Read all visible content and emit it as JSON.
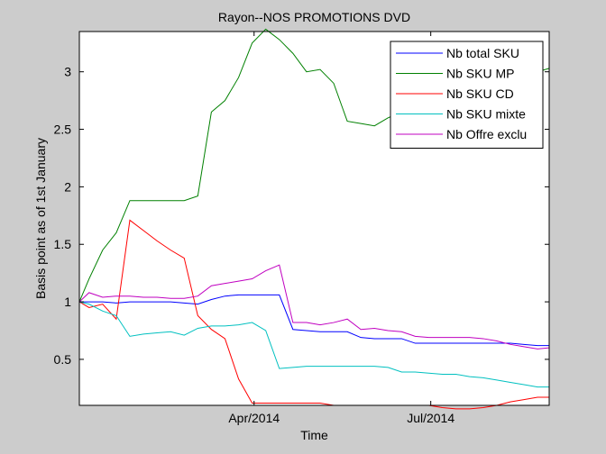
{
  "chart_data": {
    "type": "line",
    "title": "Rayon--NOS PROMOTIONS DVD",
    "xlabel": "Time",
    "ylabel": "Basis point as of 1st January",
    "xlim": [
      "2014-01-01",
      "2014-08-31"
    ],
    "ylim": [
      0.1,
      3.35
    ],
    "xticks": [
      "2014-04-01",
      "2014-07-01"
    ],
    "xtick_labels": [
      "Apr/2014",
      "Jul/2014"
    ],
    "yticks": [
      0.5,
      1,
      1.5,
      2,
      2.5,
      3
    ],
    "ytick_labels": [
      "0.5",
      "1",
      "1.5",
      "2",
      "2.5",
      "3"
    ],
    "grid": false,
    "legend_position": "top-right",
    "x": [
      "2014-01-01",
      "2014-01-06",
      "2014-01-13",
      "2014-01-20",
      "2014-01-27",
      "2014-02-03",
      "2014-02-10",
      "2014-02-17",
      "2014-02-24",
      "2014-03-03",
      "2014-03-10",
      "2014-03-17",
      "2014-03-24",
      "2014-03-31",
      "2014-04-07",
      "2014-04-14",
      "2014-04-21",
      "2014-04-28",
      "2014-05-05",
      "2014-05-12",
      "2014-05-19",
      "2014-05-26",
      "2014-06-02",
      "2014-06-09",
      "2014-06-16",
      "2014-06-23",
      "2014-06-30",
      "2014-07-07",
      "2014-07-14",
      "2014-07-21",
      "2014-07-28",
      "2014-08-04",
      "2014-08-11",
      "2014-08-18",
      "2014-08-25",
      "2014-08-31"
    ],
    "series": [
      {
        "name": "Nb total SKU",
        "color": "#0000ff",
        "values": [
          1.0,
          1.0,
          1.0,
          0.99,
          1.0,
          1.0,
          1.0,
          1.0,
          0.99,
          0.98,
          1.02,
          1.05,
          1.06,
          1.06,
          1.06,
          1.06,
          0.76,
          0.75,
          0.74,
          0.74,
          0.74,
          0.69,
          0.68,
          0.68,
          0.68,
          0.64,
          0.64,
          0.64,
          0.64,
          0.64,
          0.64,
          0.64,
          0.64,
          0.63,
          0.62,
          0.62
        ]
      },
      {
        "name": "Nb SKU MP",
        "color": "#008000",
        "values": [
          1.0,
          1.2,
          1.45,
          1.6,
          1.88,
          1.88,
          1.88,
          1.88,
          1.88,
          1.92,
          2.65,
          2.75,
          2.95,
          3.25,
          3.37,
          3.28,
          3.16,
          3.0,
          3.02,
          2.9,
          2.57,
          2.55,
          2.53,
          2.6,
          2.65,
          2.7,
          2.75,
          2.8,
          2.85,
          2.9,
          2.92,
          2.95,
          2.97,
          3.0,
          3.0,
          3.03
        ]
      },
      {
        "name": "Nb SKU CD",
        "color": "#ff0000",
        "values": [
          1.0,
          0.95,
          0.98,
          0.85,
          1.71,
          1.62,
          1.53,
          1.45,
          1.38,
          0.88,
          0.76,
          0.68,
          0.33,
          0.12,
          0.12,
          0.12,
          0.12,
          0.12,
          0.12,
          0.1,
          0.1,
          0.1,
          0.1,
          0.1,
          0.1,
          0.1,
          0.1,
          0.08,
          0.07,
          0.07,
          0.08,
          0.1,
          0.13,
          0.15,
          0.17,
          0.17
        ]
      },
      {
        "name": "Nb SKU mixte",
        "color": "#00c0c0",
        "values": [
          1.0,
          0.98,
          0.92,
          0.88,
          0.7,
          0.72,
          0.73,
          0.74,
          0.71,
          0.77,
          0.79,
          0.79,
          0.8,
          0.82,
          0.75,
          0.42,
          0.43,
          0.44,
          0.44,
          0.44,
          0.44,
          0.44,
          0.44,
          0.43,
          0.39,
          0.39,
          0.38,
          0.37,
          0.37,
          0.35,
          0.34,
          0.32,
          0.3,
          0.28,
          0.26,
          0.26
        ]
      },
      {
        "name": "Nb Offre exclu",
        "color": "#c000c0",
        "values": [
          1.0,
          1.08,
          1.04,
          1.05,
          1.05,
          1.04,
          1.04,
          1.03,
          1.03,
          1.05,
          1.14,
          1.16,
          1.18,
          1.2,
          1.27,
          1.32,
          0.82,
          0.82,
          0.8,
          0.82,
          0.85,
          0.76,
          0.77,
          0.75,
          0.74,
          0.7,
          0.69,
          0.69,
          0.69,
          0.69,
          0.68,
          0.66,
          0.63,
          0.61,
          0.59,
          0.6
        ]
      }
    ]
  }
}
